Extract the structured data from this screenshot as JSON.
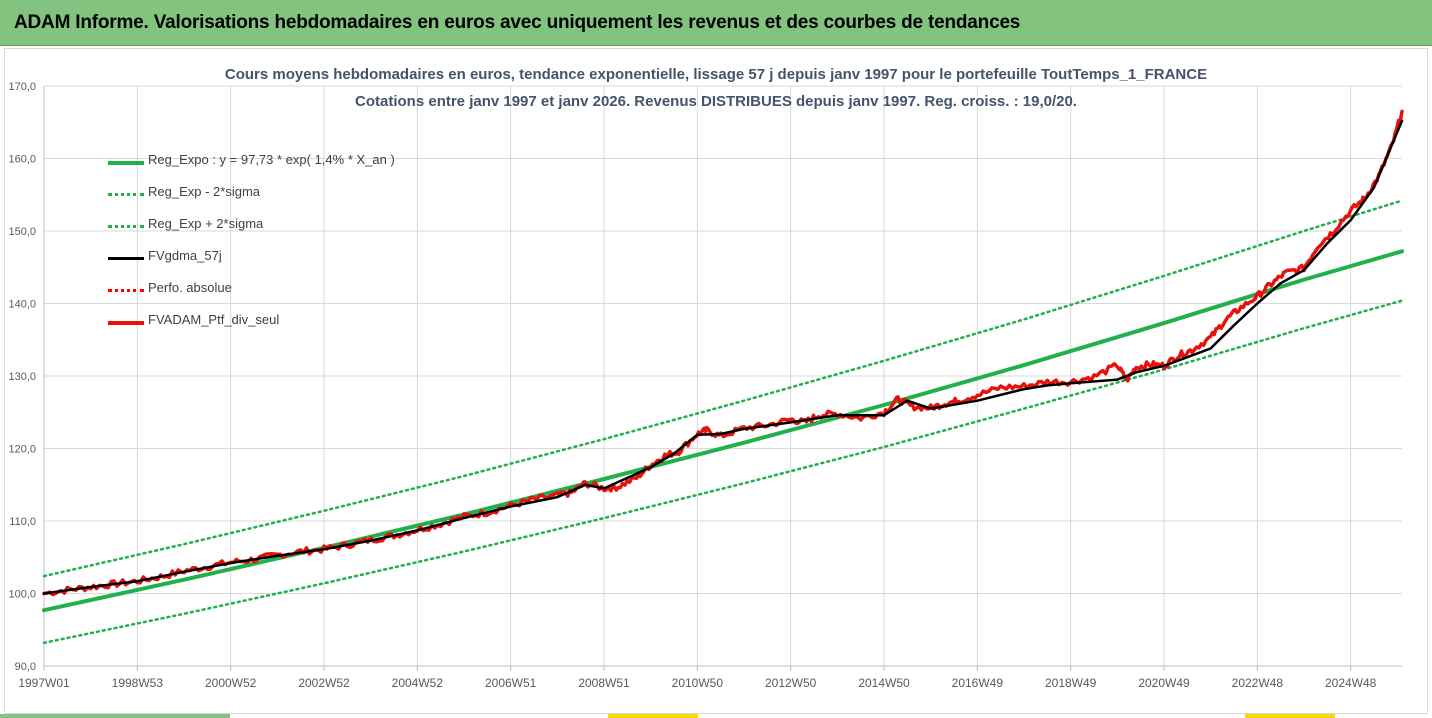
{
  "header": {
    "title": "ADAM Informe. Valorisations hebdomadaires en euros avec uniquement les revenus et des courbes de tendances"
  },
  "colors": {
    "banner": "#82c47f",
    "trend": "#21b04b",
    "band": "#21b04b",
    "smooth": "#000000",
    "perf_abs": "#ff0000",
    "portfolio": "#e8120c"
  },
  "chart_data": {
    "type": "line",
    "title": "Cours moyens hebdomadaires  en euros, tendance exponentielle, lissage 57 j depuis janv 1997 pour le portefeuille ToutTemps_1_FRANCE",
    "subtitle": "Cotations entre janv 1997 et janv 2026. Revenus DISTRIBUES depuis janv 1997. Reg. croiss. : 19,0/20.",
    "ylim": [
      90,
      170
    ],
    "yticks": [
      "90,0",
      "100,0",
      "110,0",
      "120,0",
      "130,0",
      "140,0",
      "150,0",
      "160,0",
      "170,0"
    ],
    "xlim": [
      1997.0,
      2026.1
    ],
    "xticks": [
      {
        "label": "1997W01",
        "x": 1997.0
      },
      {
        "label": "1998W53",
        "x": 1999.0
      },
      {
        "label": "2000W52",
        "x": 2001.0
      },
      {
        "label": "2002W52",
        "x": 2003.0
      },
      {
        "label": "2004W52",
        "x": 2005.0
      },
      {
        "label": "2006W51",
        "x": 2007.0
      },
      {
        "label": "2008W51",
        "x": 2009.0
      },
      {
        "label": "2010W50",
        "x": 2011.0
      },
      {
        "label": "2012W50",
        "x": 2013.0
      },
      {
        "label": "2014W50",
        "x": 2015.0
      },
      {
        "label": "2016W49",
        "x": 2017.0
      },
      {
        "label": "2018W49",
        "x": 2019.0
      },
      {
        "label": "2020W49",
        "x": 2021.0
      },
      {
        "label": "2022W48",
        "x": 2023.0
      },
      {
        "label": "2024W48",
        "x": 2025.0
      }
    ],
    "grid": true,
    "legend_position": "top-left",
    "series": [
      {
        "name": "Reg_Expo : y = 97,73 * exp( 1,4% *  X_an )",
        "style": "solid-thick",
        "x": [
          1997.0,
          2000.0,
          2003.0,
          2006.0,
          2009.0,
          2012.0,
          2015.0,
          2018.0,
          2021.0,
          2024.0,
          2026.1
        ],
        "values": [
          97.7,
          101.9,
          106.3,
          110.9,
          115.8,
          120.8,
          126.0,
          131.5,
          137.3,
          143.3,
          147.2
        ]
      },
      {
        "name": "Reg_Exp - 2*sigma",
        "style": "dotted",
        "x": [
          1997.0,
          2000.0,
          2003.0,
          2006.0,
          2009.0,
          2012.0,
          2015.0,
          2018.0,
          2021.0,
          2024.0,
          2026.1
        ],
        "values": [
          93.2,
          97.2,
          101.4,
          105.8,
          110.4,
          115.2,
          120.2,
          125.5,
          130.9,
          136.6,
          140.4
        ]
      },
      {
        "name": "Reg_Exp + 2*sigma",
        "style": "dotted",
        "x": [
          1997.0,
          2000.0,
          2003.0,
          2006.0,
          2009.0,
          2012.0,
          2015.0,
          2018.0,
          2021.0,
          2024.0,
          2026.1
        ],
        "values": [
          102.4,
          106.8,
          111.4,
          116.2,
          121.3,
          126.6,
          132.1,
          137.8,
          143.8,
          150.0,
          154.2
        ]
      },
      {
        "name": "FVgdma_57j",
        "style": "solid",
        "x": [
          1997.0,
          1998.0,
          1999.0,
          2000.0,
          2001.0,
          2002.0,
          2003.0,
          2004.0,
          2005.0,
          2006.0,
          2007.0,
          2008.0,
          2008.6,
          2009.0,
          2010.0,
          2010.5,
          2011.0,
          2011.5,
          2012.0,
          2013.0,
          2014.0,
          2015.0,
          2015.5,
          2016.0,
          2017.0,
          2018.0,
          2018.5,
          2019.0,
          2020.0,
          2020.4,
          2021.0,
          2021.5,
          2022.0,
          2022.5,
          2023.0,
          2023.5,
          2024.0,
          2024.5,
          2025.0,
          2025.5,
          2026.1
        ],
        "values": [
          100.0,
          100.9,
          101.7,
          103.0,
          104.2,
          105.2,
          106.1,
          107.3,
          108.7,
          110.4,
          112.0,
          113.3,
          115.0,
          114.5,
          117.4,
          119.3,
          121.9,
          122.0,
          122.7,
          123.6,
          124.6,
          124.6,
          126.6,
          125.5,
          126.6,
          128.2,
          128.7,
          129.0,
          129.5,
          130.5,
          131.4,
          132.6,
          133.8,
          137.0,
          140.0,
          142.8,
          144.6,
          148.3,
          151.5,
          156.0,
          165.2
        ]
      },
      {
        "name": "Perfo. absolue",
        "style": "dotted",
        "values": []
      },
      {
        "name": "FVADAM_Ptf_div_seul",
        "style": "solid-thick",
        "x": [
          1997.0,
          1997.5,
          1998.0,
          1998.5,
          1999.0,
          1999.5,
          2000.0,
          2000.5,
          2001.0,
          2001.5,
          2002.0,
          2002.5,
          2003.0,
          2003.5,
          2004.0,
          2004.5,
          2005.0,
          2005.5,
          2006.0,
          2006.5,
          2007.0,
          2007.5,
          2008.0,
          2008.3,
          2008.6,
          2009.0,
          2009.3,
          2009.7,
          2010.0,
          2010.3,
          2010.6,
          2011.0,
          2011.2,
          2011.5,
          2012.0,
          2012.5,
          2013.0,
          2013.3,
          2013.6,
          2014.0,
          2014.5,
          2015.0,
          2015.3,
          2015.6,
          2016.0,
          2016.3,
          2016.6,
          2017.0,
          2017.5,
          2018.0,
          2018.5,
          2019.0,
          2019.5,
          2020.0,
          2020.2,
          2020.4,
          2020.7,
          2021.0,
          2021.3,
          2021.6,
          2022.0,
          2022.3,
          2022.6,
          2023.0,
          2023.3,
          2023.6,
          2024.0,
          2024.3,
          2024.6,
          2025.0,
          2025.3,
          2025.6,
          2025.9,
          2026.1
        ],
        "values": [
          100.0,
          100.5,
          100.9,
          101.3,
          101.7,
          102.3,
          103.1,
          103.7,
          104.3,
          104.7,
          105.3,
          105.8,
          106.1,
          106.7,
          107.4,
          108.0,
          108.8,
          109.6,
          110.6,
          111.2,
          112.1,
          113.0,
          113.5,
          113.9,
          115.2,
          114.5,
          114.7,
          116.0,
          117.7,
          119.0,
          119.6,
          122.0,
          122.5,
          121.7,
          122.8,
          123.2,
          124.0,
          123.6,
          124.6,
          124.8,
          124.2,
          125.0,
          126.8,
          125.8,
          125.6,
          126.2,
          126.6,
          127.4,
          128.4,
          128.6,
          129.2,
          129.2,
          129.9,
          131.5,
          129.4,
          131.2,
          131.6,
          131.4,
          132.8,
          133.6,
          135.3,
          137.6,
          139.2,
          141.0,
          142.7,
          144.2,
          144.9,
          148.0,
          149.8,
          152.8,
          154.5,
          157.5,
          162.0,
          166.5
        ]
      }
    ]
  }
}
